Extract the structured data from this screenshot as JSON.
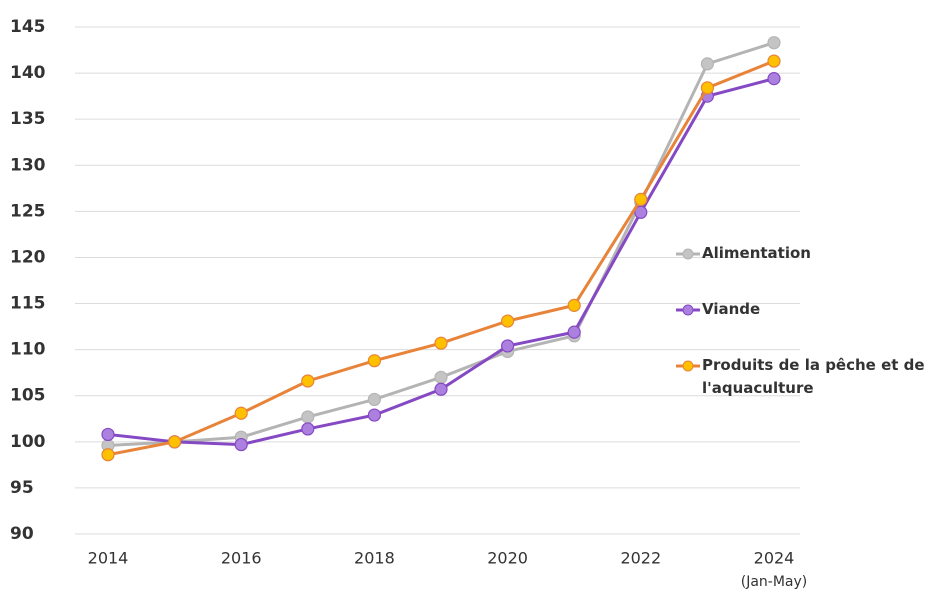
{
  "chart_data": {
    "type": "line",
    "x": [
      2014,
      2015,
      2016,
      2017,
      2018,
      2019,
      2020,
      2021,
      2022,
      2023,
      2024
    ],
    "x_note": "(Jan-May)",
    "series": [
      {
        "name": "Alimentation",
        "color": "#b4b4b4",
        "marker_color": "#c4c4c4",
        "values": [
          99.6,
          100,
          100.5,
          102.7,
          104.6,
          107,
          109.8,
          111.5,
          126,
          141,
          143.3
        ]
      },
      {
        "name": "Viande",
        "color": "#8549c4",
        "marker_color": "#ab80de",
        "values": [
          100.8,
          100,
          99.7,
          101.4,
          102.9,
          105.7,
          110.4,
          111.9,
          124.9,
          137.5,
          139.4
        ]
      },
      {
        "name": "Produits de la pêche et de l'aquaculture",
        "color": "#e8833a",
        "marker_color": "#ffc000",
        "values": [
          98.6,
          100,
          103.1,
          106.6,
          108.8,
          110.7,
          113.1,
          114.8,
          126.3,
          138.4,
          141.3
        ]
      }
    ],
    "xlim": [
      2014,
      2024
    ],
    "xticks": [
      2014,
      2016,
      2018,
      2020,
      2022,
      2024
    ],
    "ylim": [
      90,
      145
    ],
    "yticks": [
      90,
      95,
      100,
      105,
      110,
      115,
      120,
      125,
      130,
      135,
      140,
      145
    ],
    "grid": true,
    "legend": "right"
  }
}
